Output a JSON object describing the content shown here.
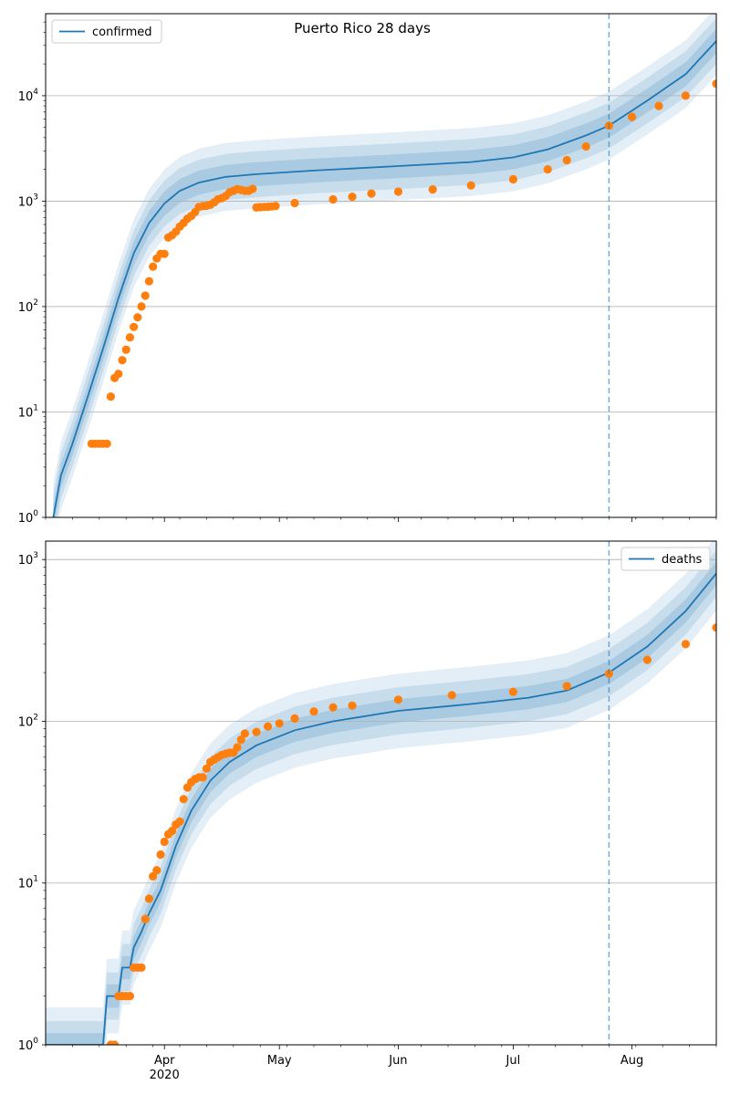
{
  "chart_data": [
    {
      "type": "line",
      "panel": "top",
      "title": "Puerto Rico 28 days",
      "yscale": "log",
      "ylim": [
        1,
        60000
      ],
      "yticks": [
        1,
        10,
        100,
        1000,
        10000
      ],
      "ytick_labels": [
        {
          "base": "10",
          "exp": "0"
        },
        {
          "base": "10",
          "exp": "1"
        },
        {
          "base": "10",
          "exp": "2"
        },
        {
          "base": "10",
          "exp": "3"
        },
        {
          "base": "10",
          "exp": "4"
        }
      ],
      "grid": "y-major",
      "legend": {
        "entries": [
          "confirmed"
        ],
        "placement": "top-left"
      },
      "forecast_start": "2020-07-26",
      "series": [
        {
          "name": "confirmed",
          "kind": "model-median-with-bands",
          "color": "#1f77b4",
          "points": [
            [
              "2020-03-03",
              1
            ],
            [
              "2020-03-05",
              2.5
            ],
            [
              "2020-03-08",
              5
            ],
            [
              "2020-03-12",
              14
            ],
            [
              "2020-03-16",
              40
            ],
            [
              "2020-03-20",
              120
            ],
            [
              "2020-03-24",
              320
            ],
            [
              "2020-03-28",
              620
            ],
            [
              "2020-04-01",
              950
            ],
            [
              "2020-04-05",
              1250
            ],
            [
              "2020-04-10",
              1500
            ],
            [
              "2020-04-17",
              1700
            ],
            [
              "2020-04-25",
              1800
            ],
            [
              "2020-05-10",
              1950
            ],
            [
              "2020-06-01",
              2150
            ],
            [
              "2020-06-20",
              2350
            ],
            [
              "2020-07-01",
              2600
            ],
            [
              "2020-07-10",
              3100
            ],
            [
              "2020-07-20",
              4200
            ],
            [
              "2020-07-26",
              5200
            ],
            [
              "2020-08-05",
              9000
            ],
            [
              "2020-08-15",
              16000
            ],
            [
              "2020-08-23",
              33000
            ]
          ],
          "band_factors": [
            1.3,
            1.65,
            2.1
          ]
        },
        {
          "name": "",
          "kind": "observed",
          "color": "#ff7f0e",
          "points": [
            [
              "2020-03-13",
              5
            ],
            [
              "2020-03-14",
              5
            ],
            [
              "2020-03-15",
              5
            ],
            [
              "2020-03-16",
              5
            ],
            [
              "2020-03-17",
              5
            ],
            [
              "2020-03-18",
              14
            ],
            [
              "2020-03-19",
              21
            ],
            [
              "2020-03-20",
              23
            ],
            [
              "2020-03-21",
              31
            ],
            [
              "2020-03-22",
              39
            ],
            [
              "2020-03-23",
              51
            ],
            [
              "2020-03-24",
              64
            ],
            [
              "2020-03-25",
              79
            ],
            [
              "2020-03-26",
              100
            ],
            [
              "2020-03-27",
              127
            ],
            [
              "2020-03-28",
              174
            ],
            [
              "2020-03-29",
              239
            ],
            [
              "2020-03-30",
              286
            ],
            [
              "2020-03-31",
              316
            ],
            [
              "2020-04-01",
              316
            ],
            [
              "2020-04-02",
              452
            ],
            [
              "2020-04-03",
              475
            ],
            [
              "2020-04-04",
              513
            ],
            [
              "2020-04-05",
              573
            ],
            [
              "2020-04-06",
              620
            ],
            [
              "2020-04-07",
              683
            ],
            [
              "2020-04-08",
              725
            ],
            [
              "2020-04-09",
              788
            ],
            [
              "2020-04-10",
              880
            ],
            [
              "2020-04-11",
              897
            ],
            [
              "2020-04-12",
              903
            ],
            [
              "2020-04-13",
              923
            ],
            [
              "2020-04-14",
              974
            ],
            [
              "2020-04-15",
              1043
            ],
            [
              "2020-04-16",
              1068
            ],
            [
              "2020-04-17",
              1118
            ],
            [
              "2020-04-18",
              1213
            ],
            [
              "2020-04-19",
              1252
            ],
            [
              "2020-04-20",
              1298
            ],
            [
              "2020-04-21",
              1276
            ],
            [
              "2020-04-22",
              1252
            ],
            [
              "2020-04-23",
              1252
            ],
            [
              "2020-04-24",
              1307
            ],
            [
              "2020-04-25",
              870
            ],
            [
              "2020-04-26",
              878
            ],
            [
              "2020-04-27",
              880
            ],
            [
              "2020-04-28",
              885
            ],
            [
              "2020-04-29",
              890
            ],
            [
              "2020-04-30",
              900
            ],
            [
              "2020-05-05",
              960
            ],
            [
              "2020-05-15",
              1040
            ],
            [
              "2020-05-20",
              1100
            ],
            [
              "2020-05-25",
              1180
            ],
            [
              "2020-06-01",
              1230
            ],
            [
              "2020-06-10",
              1290
            ],
            [
              "2020-06-20",
              1410
            ],
            [
              "2020-07-01",
              1610
            ],
            [
              "2020-07-10",
              2000
            ],
            [
              "2020-07-15",
              2450
            ],
            [
              "2020-07-20",
              3300
            ],
            [
              "2020-07-26",
              5200
            ],
            [
              "2020-08-01",
              6300
            ],
            [
              "2020-08-08",
              8000
            ],
            [
              "2020-08-15",
              10000
            ],
            [
              "2020-08-23",
              13000
            ]
          ]
        }
      ]
    },
    {
      "type": "line",
      "panel": "bottom",
      "yscale": "log",
      "ylim": [
        1,
        1300
      ],
      "yticks": [
        1,
        10,
        100,
        1000
      ],
      "ytick_labels": [
        {
          "base": "10",
          "exp": "0"
        },
        {
          "base": "10",
          "exp": "1"
        },
        {
          "base": "10",
          "exp": "2"
        },
        {
          "base": "10",
          "exp": "3"
        }
      ],
      "xlim": [
        "2020-03-01",
        "2020-08-23"
      ],
      "xtick_labels": [
        {
          "date": "2020-04-01",
          "label": "Apr",
          "sub": "2020"
        },
        {
          "date": "2020-05-01",
          "label": "May",
          "sub": ""
        },
        {
          "date": "2020-06-01",
          "label": "Jun",
          "sub": ""
        },
        {
          "date": "2020-07-01",
          "label": "Jul",
          "sub": ""
        },
        {
          "date": "2020-08-01",
          "label": "Aug",
          "sub": ""
        }
      ],
      "grid": "y-major",
      "legend": {
        "entries": [
          "deaths"
        ],
        "placement": "top-right"
      },
      "forecast_start": "2020-07-26",
      "series": [
        {
          "name": "deaths",
          "kind": "model-median-with-bands",
          "color": "#1f77b4",
          "points": [
            [
              "2020-03-01",
              1
            ],
            [
              "2020-03-16",
              1
            ],
            [
              "2020-03-17",
              2
            ],
            [
              "2020-03-20",
              2
            ],
            [
              "2020-03-21",
              3
            ],
            [
              "2020-03-23",
              3
            ],
            [
              "2020-03-24",
              4
            ],
            [
              "2020-03-26",
              5
            ],
            [
              "2020-03-28",
              6.5
            ],
            [
              "2020-03-31",
              9
            ],
            [
              "2020-04-04",
              17
            ],
            [
              "2020-04-08",
              28
            ],
            [
              "2020-04-13",
              43
            ],
            [
              "2020-04-18",
              56
            ],
            [
              "2020-04-25",
              71
            ],
            [
              "2020-05-05",
              88
            ],
            [
              "2020-05-15",
              100
            ],
            [
              "2020-06-01",
              116
            ],
            [
              "2020-06-20",
              128
            ],
            [
              "2020-07-05",
              140
            ],
            [
              "2020-07-15",
              155
            ],
            [
              "2020-07-26",
              200
            ],
            [
              "2020-08-05",
              290
            ],
            [
              "2020-08-15",
              480
            ],
            [
              "2020-08-23",
              820
            ]
          ],
          "band_factors": [
            1.18,
            1.4,
            1.7
          ]
        },
        {
          "name": "",
          "kind": "observed",
          "color": "#ff7f0e",
          "points": [
            [
              "2020-03-18",
              1
            ],
            [
              "2020-03-19",
              1
            ],
            [
              "2020-03-20",
              2
            ],
            [
              "2020-03-21",
              2
            ],
            [
              "2020-03-22",
              2
            ],
            [
              "2020-03-23",
              2
            ],
            [
              "2020-03-24",
              3
            ],
            [
              "2020-03-25",
              3
            ],
            [
              "2020-03-26",
              3
            ],
            [
              "2020-03-27",
              6
            ],
            [
              "2020-03-28",
              8
            ],
            [
              "2020-03-29",
              11
            ],
            [
              "2020-03-30",
              12
            ],
            [
              "2020-03-31",
              15
            ],
            [
              "2020-04-01",
              18
            ],
            [
              "2020-04-02",
              20
            ],
            [
              "2020-04-03",
              21
            ],
            [
              "2020-04-04",
              23
            ],
            [
              "2020-04-05",
              24
            ],
            [
              "2020-04-06",
              33
            ],
            [
              "2020-04-07",
              39
            ],
            [
              "2020-04-08",
              42
            ],
            [
              "2020-04-09",
              44
            ],
            [
              "2020-04-10",
              45
            ],
            [
              "2020-04-11",
              45
            ],
            [
              "2020-04-12",
              51
            ],
            [
              "2020-04-13",
              56
            ],
            [
              "2020-04-14",
              58
            ],
            [
              "2020-04-15",
              60
            ],
            [
              "2020-04-16",
              62
            ],
            [
              "2020-04-17",
              63
            ],
            [
              "2020-04-18",
              64
            ],
            [
              "2020-04-19",
              64
            ],
            [
              "2020-04-20",
              69
            ],
            [
              "2020-04-21",
              77
            ],
            [
              "2020-04-22",
              84
            ],
            [
              "2020-04-25",
              86
            ],
            [
              "2020-04-28",
              93
            ],
            [
              "2020-05-01",
              97
            ],
            [
              "2020-05-05",
              104
            ],
            [
              "2020-05-10",
              115
            ],
            [
              "2020-05-15",
              122
            ],
            [
              "2020-05-20",
              125
            ],
            [
              "2020-06-01",
              136
            ],
            [
              "2020-06-15",
              145
            ],
            [
              "2020-07-01",
              152
            ],
            [
              "2020-07-15",
              165
            ],
            [
              "2020-07-26",
              197
            ],
            [
              "2020-08-05",
              240
            ],
            [
              "2020-08-15",
              300
            ],
            [
              "2020-08-23",
              380
            ]
          ]
        }
      ]
    }
  ]
}
